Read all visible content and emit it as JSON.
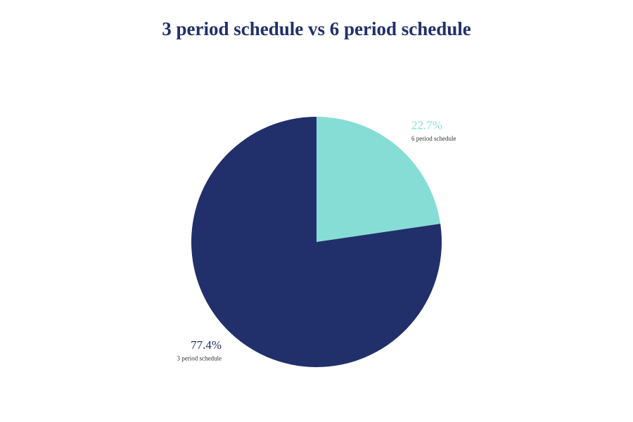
{
  "chart_data": {
    "type": "pie",
    "title": "3 period schedule vs 6 period schedule",
    "categories": [
      "6 period schedule",
      "3 period schedule"
    ],
    "values": [
      22.7,
      77.4
    ],
    "value_labels": [
      "22.7%",
      "77.4%"
    ],
    "colors": [
      "#86ddd5",
      "#21306b"
    ]
  }
}
